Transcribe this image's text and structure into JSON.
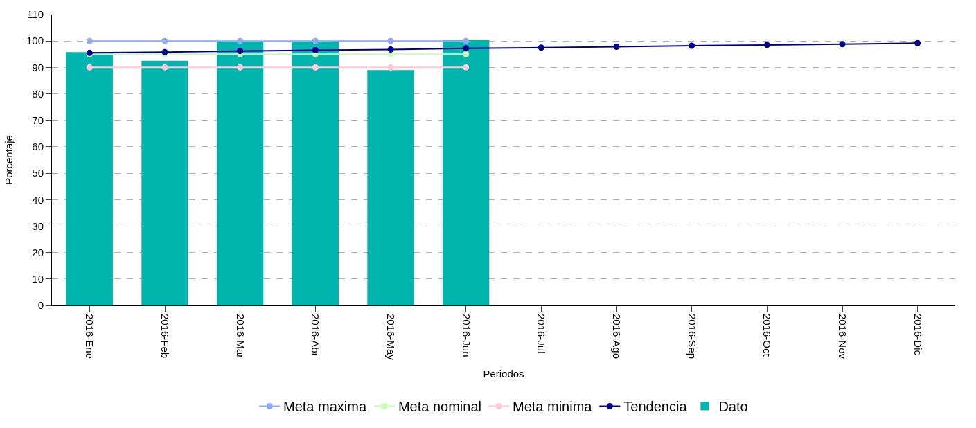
{
  "chart_data": {
    "type": "line",
    "xlabel": "Periodos",
    "ylabel": "Porcentaje",
    "categories": [
      "2016-Ene",
      "2016-Feb",
      "2016-Mar",
      "2016-Abr",
      "2016-May",
      "2016-Jun",
      "2016-Jul",
      "2016-Ago",
      "2016-Sep",
      "2016-Oct",
      "2016-Nov",
      "2016-Dic"
    ],
    "series": [
      {
        "name": "Meta maxima",
        "color": "#8fa8f8",
        "values": [
          100,
          100,
          100,
          100,
          100,
          100,
          null,
          null,
          null,
          null,
          null,
          null
        ]
      },
      {
        "name": "Meta nominal",
        "color": "#c6fcb4",
        "values": [
          95,
          95,
          95,
          95,
          95,
          95,
          null,
          null,
          null,
          null,
          null,
          null
        ]
      },
      {
        "name": "Meta minima",
        "color": "#fccad6",
        "values": [
          90,
          90,
          90,
          90,
          90,
          90,
          null,
          null,
          null,
          null,
          null,
          null
        ]
      },
      {
        "name": "Tendencia",
        "color": "#00008b",
        "values": [
          95.5,
          95.8,
          96.2,
          96.5,
          96.8,
          97.2,
          97.5,
          97.8,
          98.2,
          98.5,
          98.8,
          99.2
        ]
      },
      {
        "name": "Dato",
        "type": "bar",
        "color": "#00b5ad",
        "values": [
          95.8,
          92.5,
          100,
          100,
          89,
          100.3,
          null,
          null,
          null,
          null,
          null,
          null
        ]
      }
    ],
    "ylim": [
      0,
      110
    ],
    "yticks": [
      0,
      10,
      20,
      30,
      40,
      50,
      60,
      70,
      80,
      90,
      100,
      110
    ],
    "grid": "y",
    "legend": "bottom",
    "marker": "circle"
  }
}
